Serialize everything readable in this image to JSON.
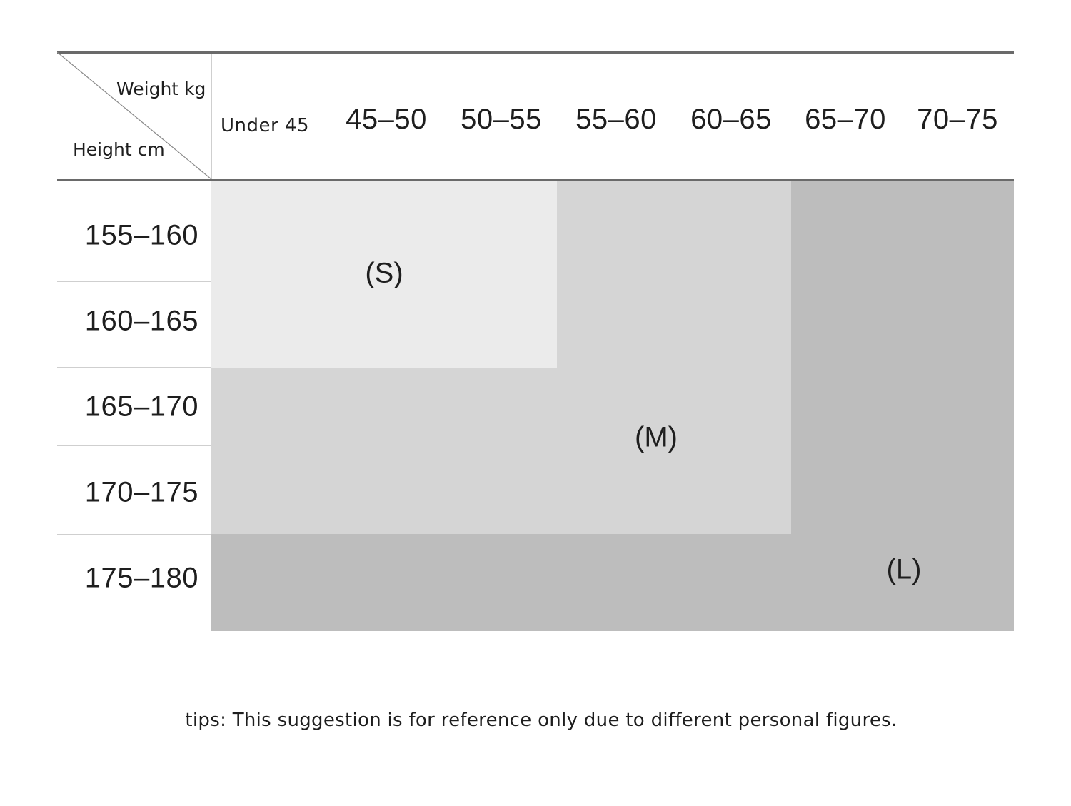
{
  "chart_data": {
    "type": "table",
    "corner": {
      "weight_label": "Weight kg",
      "height_label": "Height cm"
    },
    "columns": [
      "Under 45",
      "45–50",
      "50–55",
      "55–60",
      "60–65",
      "65–70",
      "70–75"
    ],
    "rows": [
      "155–160",
      "160–165",
      "165–170",
      "170–175",
      "175–180"
    ],
    "sizes": [
      {
        "label": "(S)",
        "rows": [
          "155–160",
          "160–165"
        ],
        "columns": [
          "Under 45",
          "45–50",
          "50–55"
        ],
        "color": "#ebebeb"
      },
      {
        "label": "(M)",
        "rows": [
          "155–160",
          "160–165",
          "165–170",
          "170–175"
        ],
        "columns": [
          "Under 45",
          "45–50",
          "50–55",
          "55–60",
          "60–65"
        ],
        "color": "#d5d5d5"
      },
      {
        "label": "(L)",
        "rows": [
          "155–160",
          "160–165",
          "165–170",
          "170–175",
          "175–180"
        ],
        "columns": [
          "Under 45",
          "45–50",
          "50–55",
          "55–60",
          "60–65",
          "65–70",
          "70–75"
        ],
        "color": "#bdbdbd"
      }
    ]
  },
  "tips": "tips: This suggestion is for reference only due to different personal figures."
}
